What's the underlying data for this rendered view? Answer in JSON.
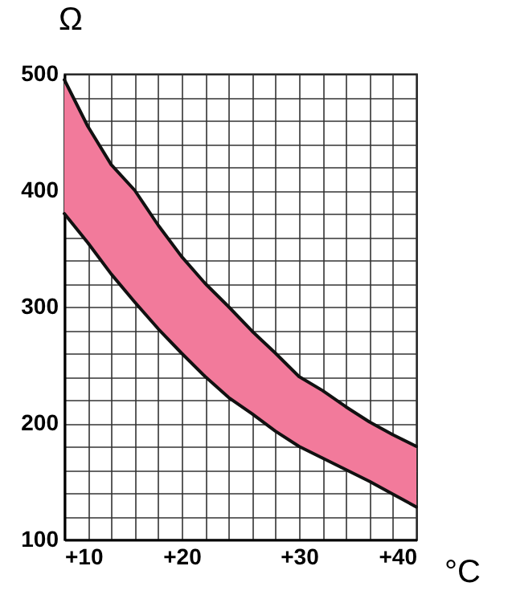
{
  "chart_data": {
    "type": "line",
    "xlabel": "°C",
    "ylabel": "Ω",
    "x": [
      10,
      12,
      14,
      16,
      18,
      20,
      22,
      24,
      26,
      28,
      30,
      32,
      34,
      36,
      38,
      40
    ],
    "series": [
      {
        "color": "#111111",
        "values": [
          380,
          355,
          328,
          304,
          281,
          260,
          240,
          222,
          208,
          193,
          180,
          170,
          160,
          150,
          139,
          128
        ]
      },
      {
        "type": "area",
        "color": "#f27a9b",
        "values": [
          495,
          455,
          422,
          400,
          370,
          343,
          320,
          300,
          279,
          260,
          240,
          228,
          214,
          201,
          190,
          180
        ]
      }
    ],
    "xlim": [
      10,
      40
    ],
    "ylim": [
      100,
      500
    ],
    "xticks": [
      {
        "value": 10,
        "label": "+10"
      },
      {
        "value": 12,
        "label": null
      },
      {
        "value": 14,
        "label": null
      },
      {
        "value": 16,
        "label": null
      },
      {
        "value": 18,
        "label": null
      },
      {
        "value": 20,
        "label": "+20"
      },
      {
        "value": 22,
        "label": null
      },
      {
        "value": 24,
        "label": null
      },
      {
        "value": 26,
        "label": null
      },
      {
        "value": 28,
        "label": null
      },
      {
        "value": 30,
        "label": "+30"
      },
      {
        "value": 32,
        "label": null
      },
      {
        "value": 34,
        "label": null
      },
      {
        "value": 36,
        "label": null
      },
      {
        "value": 38,
        "label": null
      },
      {
        "value": 40,
        "label": "+40"
      }
    ],
    "yticks": [
      100,
      {
        "value": 120,
        "label": null
      },
      {
        "value": 140,
        "label": null
      },
      {
        "value": 160,
        "label": null
      },
      {
        "value": 180,
        "label": null
      },
      200,
      {
        "value": 220,
        "label": null
      },
      {
        "value": 240,
        "label": null
      },
      {
        "value": 260,
        "label": null
      },
      {
        "value": 280,
        "label": null
      },
      300,
      {
        "value": 320,
        "label": null
      },
      {
        "value": 340,
        "label": null
      },
      {
        "value": 360,
        "label": null
      },
      {
        "value": 380,
        "label": null
      },
      400,
      {
        "value": 420,
        "label": null
      },
      {
        "value": 440,
        "label": null
      },
      {
        "value": 460,
        "label": null
      },
      {
        "value": 480,
        "label": null
      },
      500
    ],
    "grid": true
  }
}
